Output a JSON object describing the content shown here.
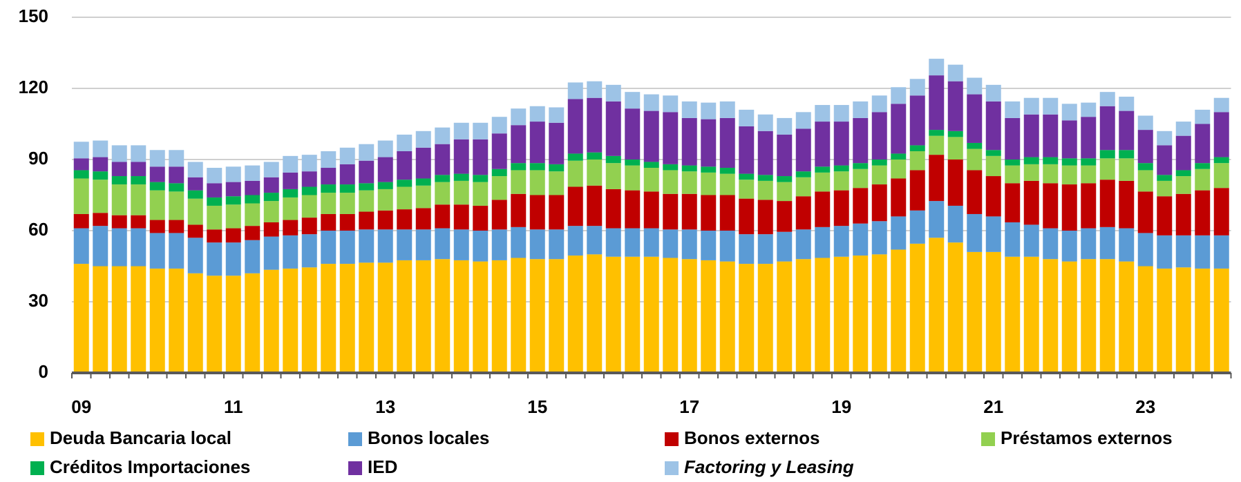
{
  "chart_data": {
    "type": "stacked_bar",
    "categories": [
      "09",
      null,
      null,
      null,
      null,
      null,
      null,
      null,
      "11",
      null,
      null,
      null,
      null,
      null,
      null,
      null,
      "13",
      null,
      null,
      null,
      null,
      null,
      null,
      null,
      "15",
      null,
      null,
      null,
      null,
      null,
      null,
      null,
      "17",
      null,
      null,
      null,
      null,
      null,
      null,
      null,
      "19",
      null,
      null,
      null,
      null,
      null,
      null,
      null,
      "21",
      null,
      null,
      null,
      null,
      null,
      null,
      null,
      "23",
      null,
      null,
      null,
      null
    ],
    "ylim": [
      0,
      150
    ],
    "yticks": [
      0,
      30,
      60,
      90,
      120,
      150
    ],
    "grid": true,
    "series": [
      {
        "name": "Deuda Bancaria local",
        "color": "#FFC000",
        "values": [
          46,
          45,
          45,
          45,
          44,
          44,
          42,
          41,
          41,
          42,
          43.5,
          44,
          44.5,
          46,
          46,
          46.5,
          46.5,
          47.5,
          47.5,
          48,
          47.5,
          47,
          47.5,
          48.5,
          48,
          48,
          49.5,
          50,
          49,
          49,
          49,
          48.5,
          48,
          47.5,
          47,
          46,
          46,
          47,
          48,
          48.5,
          49,
          49.5,
          50,
          52,
          54.5,
          57,
          55,
          51,
          51,
          49,
          49,
          48,
          47,
          48,
          48,
          47,
          45,
          44,
          44.5,
          44,
          44
        ]
      },
      {
        "name": "Bonos locales",
        "color": "#5B9BD5",
        "values": [
          15,
          17,
          16,
          16,
          15,
          15,
          15,
          14,
          14,
          14,
          14,
          14,
          14,
          14,
          14,
          14,
          14,
          13,
          13,
          13,
          13,
          13,
          13,
          13,
          12.5,
          12.5,
          12.5,
          12,
          12,
          12,
          12,
          12,
          12.5,
          12.5,
          13,
          12.5,
          12.5,
          12.5,
          12.5,
          13,
          13,
          13.5,
          14,
          14,
          14,
          15.5,
          15.5,
          16,
          15,
          14.5,
          13.5,
          13,
          13,
          13,
          13.5,
          14,
          14,
          14,
          13.5,
          14,
          14
        ]
      },
      {
        "name": "Bonos externos",
        "color": "#C00000",
        "values": [
          6,
          5.5,
          5.5,
          5.5,
          5.5,
          5.5,
          5.5,
          5.5,
          6,
          6,
          6,
          6.5,
          7,
          7,
          7,
          7.5,
          8,
          8.5,
          9,
          10,
          10.5,
          10.5,
          12.5,
          14,
          14.5,
          14.5,
          16.5,
          17,
          16.5,
          16,
          15.5,
          15,
          15,
          15,
          15,
          15,
          14.5,
          13,
          14,
          15,
          15,
          15,
          15.5,
          16,
          17,
          19.5,
          19.5,
          18.5,
          17,
          16.5,
          18.5,
          19,
          19.5,
          19,
          20,
          20,
          17.5,
          16.5,
          17.5,
          19,
          20
        ]
      },
      {
        "name": "Préstamos externos",
        "color": "#92D050",
        "values": [
          15,
          14,
          13,
          13,
          12.5,
          12,
          11,
          10,
          10,
          9.5,
          9,
          9.5,
          9.5,
          9,
          9,
          9,
          9,
          9.5,
          9.5,
          9.5,
          10,
          10,
          10,
          10,
          10.5,
          10,
          11,
          11,
          11,
          10.5,
          10,
          10,
          9.5,
          9.5,
          9,
          8,
          8,
          8,
          8,
          8,
          8,
          8,
          8,
          8,
          8,
          8,
          9.5,
          9,
          8.5,
          7.5,
          7,
          8,
          8,
          7.5,
          9,
          9.5,
          9,
          6.5,
          7.5,
          9,
          10.5
        ]
      },
      {
        "name": "Créditos Importaciones",
        "color": "#00B050",
        "values": [
          3.5,
          3.5,
          3.5,
          3.5,
          3.5,
          3.5,
          3.5,
          3.5,
          3.5,
          3.5,
          3.5,
          3.5,
          3.5,
          3.5,
          3.5,
          3,
          3,
          3,
          3,
          3,
          3,
          3,
          3,
          3,
          3,
          3,
          3,
          3,
          3,
          2.5,
          2.5,
          2.5,
          2.5,
          2.5,
          2.5,
          2.5,
          2.5,
          2.5,
          2.5,
          2.5,
          2.5,
          2.5,
          2.5,
          2.5,
          2.5,
          2.5,
          2.5,
          2.5,
          2.5,
          2.5,
          3,
          3,
          3,
          3,
          3.5,
          3.5,
          3,
          2.5,
          2.5,
          2.5,
          2.5
        ]
      },
      {
        "name": "IED",
        "color": "#7030A0",
        "values": [
          5,
          6,
          6,
          6,
          6.5,
          7,
          5.5,
          6,
          6,
          6,
          6.5,
          7,
          6.5,
          7,
          8.5,
          9.5,
          10.5,
          12,
          13,
          13,
          14.5,
          15,
          15,
          16,
          17.5,
          17.5,
          23,
          23,
          23,
          21.5,
          21.5,
          22,
          20,
          20,
          21,
          20,
          18.5,
          17.5,
          18,
          19,
          18.5,
          19,
          20,
          21,
          21,
          23,
          21,
          20.5,
          20.5,
          17.5,
          18,
          18,
          16,
          17.5,
          18.5,
          16.5,
          14,
          12.5,
          14.5,
          16.5,
          19
        ]
      },
      {
        "name": "Factoring y Leasing",
        "color": "#9DC3E6",
        "values": [
          7,
          7,
          7,
          7,
          7,
          7,
          6.5,
          6.5,
          6.5,
          6.5,
          6.5,
          7,
          7,
          7,
          7,
          7,
          7,
          7,
          7,
          7,
          7,
          7,
          7,
          7,
          6.5,
          6.5,
          7,
          7,
          7,
          7,
          7,
          7,
          7,
          7,
          7,
          7,
          7,
          7,
          7,
          7,
          7,
          7,
          7,
          7,
          7,
          7,
          7,
          7,
          7,
          7,
          7,
          7,
          7,
          6,
          6,
          6,
          6,
          6,
          6,
          6,
          6
        ]
      }
    ]
  }
}
